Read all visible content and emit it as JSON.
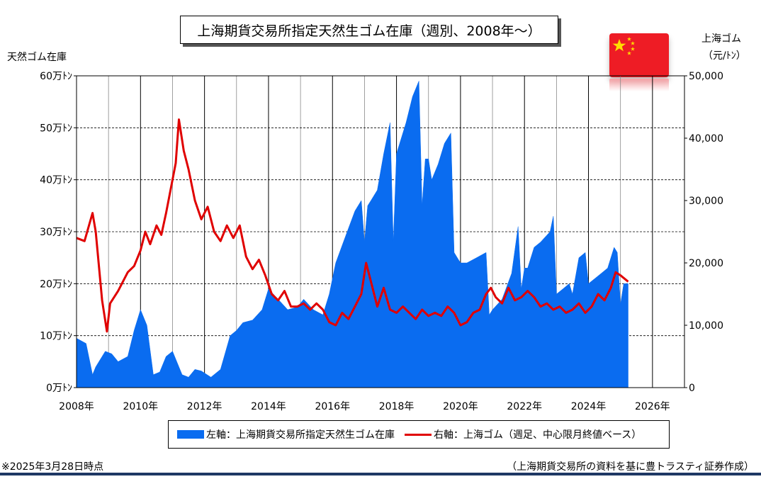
{
  "chart_data": {
    "type": "bar+line",
    "title": "上海期貨交易所指定天然生ゴム在庫（週別、2008年～）",
    "left_axis": {
      "label": "天然ゴム在庫",
      "ticks": [
        "0万ﾄﾝ",
        "10万ﾄﾝ",
        "20万ﾄﾝ",
        "30万ﾄﾝ",
        "40万ﾄﾝ",
        "50万ﾄﾝ",
        "60万ﾄﾝ"
      ],
      "ylim": [
        0,
        60
      ]
    },
    "right_axis": {
      "label_line1": "上海ゴム",
      "label_line2": "（元/ﾄﾝ）",
      "ticks": [
        "0",
        "10,000",
        "20,000",
        "30,000",
        "40,000",
        "50,000"
      ],
      "ylim": [
        0,
        50000
      ]
    },
    "x_axis": {
      "ticks": [
        "2008年",
        "2010年",
        "2012年",
        "2014年",
        "2016年",
        "2018年",
        "2020年",
        "2022年",
        "2024年",
        "2026年"
      ],
      "xlim": [
        2008,
        2027
      ]
    },
    "grid": true,
    "series": [
      {
        "name": "左軸：上海期貨交易所指定天然生ゴム在庫",
        "kind": "area",
        "color": "#0a6cf0",
        "x": [
          2008.0,
          2008.3,
          2008.5,
          2008.6,
          2008.9,
          2009.1,
          2009.3,
          2009.6,
          2009.8,
          2010.0,
          2010.2,
          2010.4,
          2010.6,
          2010.8,
          2011.0,
          2011.3,
          2011.5,
          2011.7,
          2011.9,
          2012.2,
          2012.5,
          2012.8,
          2013.0,
          2013.2,
          2013.5,
          2013.8,
          2014.0,
          2014.3,
          2014.6,
          2014.9,
          2015.1,
          2015.4,
          2015.7,
          2015.9,
          2016.1,
          2016.4,
          2016.7,
          2016.9,
          2017.0,
          2017.1,
          2017.2,
          2017.4,
          2017.6,
          2017.8,
          2017.9,
          2018.0,
          2018.1,
          2018.3,
          2018.5,
          2018.7,
          2018.8,
          2018.9,
          2019.0,
          2019.1,
          2019.3,
          2019.5,
          2019.7,
          2019.8,
          2019.9,
          2020.0,
          2020.2,
          2020.5,
          2020.8,
          2020.9,
          2021.0,
          2021.3,
          2021.6,
          2021.8,
          2021.9,
          2022.0,
          2022.1,
          2022.3,
          2022.5,
          2022.8,
          2022.9,
          2023.0,
          2023.2,
          2023.4,
          2023.5,
          2023.7,
          2023.9,
          2024.0,
          2024.2,
          2024.4,
          2024.6,
          2024.8,
          2024.9,
          2025.0,
          2025.1,
          2025.24
        ],
        "values": [
          9.5,
          8.5,
          2.5,
          4,
          7,
          6.5,
          5,
          6,
          11,
          15,
          12,
          2.5,
          3,
          6,
          7,
          2.5,
          2,
          3.5,
          3.2,
          2,
          3.5,
          10,
          11,
          12.5,
          13,
          15,
          19,
          17,
          15,
          15.5,
          17,
          15,
          14,
          18,
          24,
          29,
          34,
          36,
          28,
          35,
          36,
          38,
          45,
          51,
          28,
          45,
          47,
          51,
          56,
          59,
          35,
          44,
          44,
          40,
          43,
          47,
          49,
          26,
          25,
          24,
          24,
          25,
          26,
          14,
          15,
          17,
          22,
          31,
          19,
          23,
          23,
          27,
          28,
          30,
          33,
          18,
          19,
          20,
          18,
          25,
          26,
          20,
          21,
          22,
          23,
          27,
          26,
          16,
          20,
          20
        ]
      },
      {
        "name": "右軸：上海ゴム（週足、中心限月終値ベース）",
        "kind": "line",
        "color": "#e00000",
        "x": [
          2008.0,
          2008.25,
          2008.5,
          2008.6,
          2008.8,
          2008.95,
          2009.05,
          2009.3,
          2009.6,
          2009.8,
          2010.0,
          2010.15,
          2010.3,
          2010.5,
          2010.65,
          2010.8,
          2010.95,
          2011.1,
          2011.2,
          2011.35,
          2011.5,
          2011.7,
          2011.9,
          2012.1,
          2012.3,
          2012.5,
          2012.7,
          2012.9,
          2013.1,
          2013.3,
          2013.5,
          2013.7,
          2013.9,
          2014.1,
          2014.3,
          2014.5,
          2014.7,
          2014.9,
          2015.1,
          2015.3,
          2015.5,
          2015.7,
          2015.9,
          2016.1,
          2016.3,
          2016.5,
          2016.7,
          2016.9,
          2017.05,
          2017.2,
          2017.4,
          2017.6,
          2017.8,
          2018.0,
          2018.2,
          2018.4,
          2018.6,
          2018.8,
          2019.0,
          2019.2,
          2019.4,
          2019.6,
          2019.8,
          2020.0,
          2020.2,
          2020.4,
          2020.6,
          2020.8,
          2020.95,
          2021.1,
          2021.3,
          2021.5,
          2021.7,
          2021.9,
          2022.1,
          2022.3,
          2022.5,
          2022.7,
          2022.9,
          2023.1,
          2023.3,
          2023.5,
          2023.7,
          2023.9,
          2024.1,
          2024.3,
          2024.5,
          2024.7,
          2024.85,
          2025.0,
          2025.24
        ],
        "values": [
          24000,
          23500,
          28000,
          25000,
          14000,
          9000,
          13500,
          15500,
          18500,
          19500,
          22000,
          25000,
          23000,
          26000,
          24500,
          28000,
          32000,
          36000,
          43000,
          38000,
          35000,
          30000,
          27000,
          29000,
          25000,
          23500,
          26000,
          24000,
          26000,
          21000,
          19000,
          20500,
          18000,
          15000,
          14000,
          15500,
          13000,
          13000,
          13500,
          12500,
          13500,
          12500,
          10500,
          10000,
          12000,
          11000,
          13000,
          15000,
          20000,
          17000,
          13000,
          16000,
          12500,
          12000,
          13000,
          12000,
          11000,
          12500,
          11500,
          12000,
          11500,
          13000,
          12000,
          10000,
          10500,
          12000,
          12500,
          15000,
          16000,
          14500,
          13500,
          16000,
          14000,
          14500,
          15500,
          14500,
          13000,
          13500,
          12500,
          13000,
          12000,
          12500,
          13500,
          12000,
          13000,
          15000,
          14000,
          16000,
          18500,
          18000,
          17000
        ]
      }
    ]
  },
  "title": "上海期貨交易所指定天然生ゴム在庫（週別、2008年～）",
  "legend": {
    "bar_label": "左軸：上海期貨交易所指定天然生ゴム在庫",
    "line_label": "右軸：上海ゴム（週足、中心限月終値ベース）"
  },
  "footer": {
    "date_note": "※2025年3月28日時点",
    "source_note": "（上海期貨交易所の資料を基に豊トラスティ証券作成）"
  },
  "flag": {
    "icon": "china-flag-icon",
    "color": "#ee1c25",
    "star_color": "#ffde00"
  }
}
